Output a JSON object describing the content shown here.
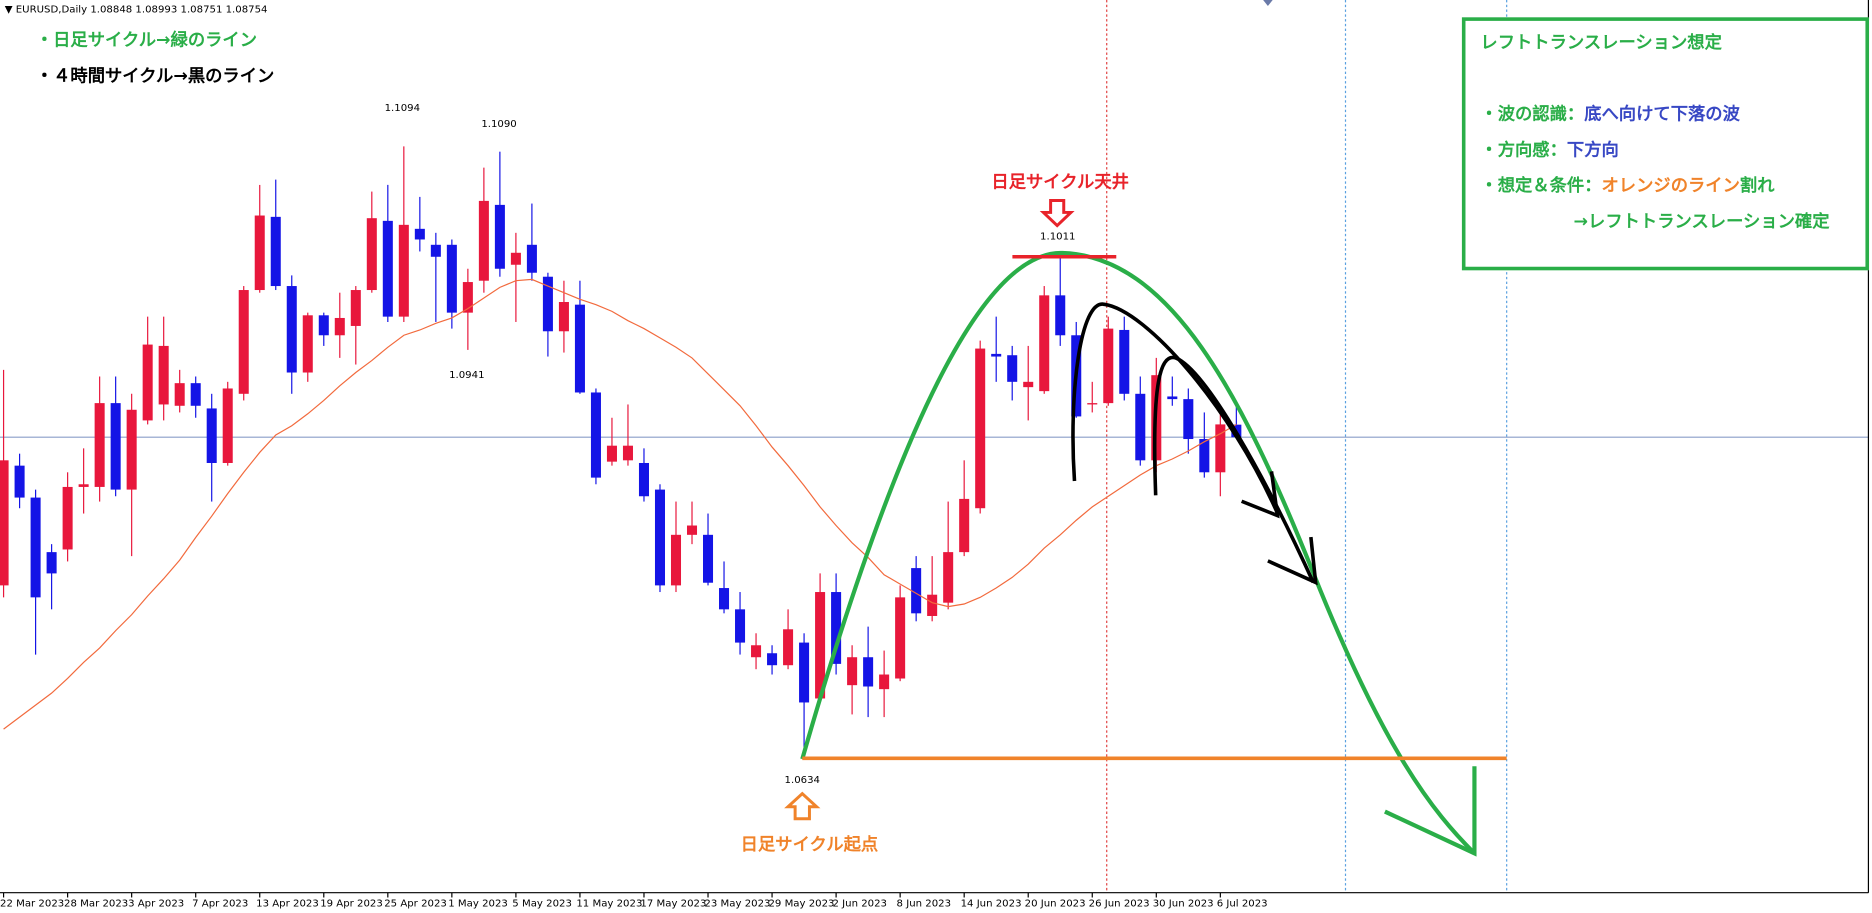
{
  "header": {
    "title": "EURUSD,Daily  1.08848 1.08993 1.08751 1.08754"
  },
  "chart_data": {
    "type": "candlestick",
    "categories": [
      "22 Mar 2023",
      null,
      null,
      null,
      "28 Mar 2023",
      null,
      null,
      null,
      "3 Apr 2023",
      null,
      null,
      null,
      "7 Apr 2023",
      null,
      null,
      null,
      "13 Apr 2023",
      null,
      null,
      null,
      "19 Apr 2023",
      null,
      null,
      null,
      "25 Apr 2023",
      null,
      null,
      null,
      "1 May 2023",
      null,
      null,
      null,
      "5 May 2023",
      null,
      null,
      null,
      "11 May 2023",
      null,
      null,
      null,
      "17 May 2023",
      null,
      null,
      null,
      "23 May 2023",
      null,
      null,
      null,
      "29 May 2023",
      null,
      null,
      null,
      "2 Jun 2023",
      null,
      null,
      null,
      "8 Jun 2023",
      null,
      null,
      null,
      "14 Jun 2023",
      null,
      null,
      null,
      "20 Jun 2023",
      null,
      null,
      null,
      "26 Jun 2023",
      null,
      null,
      null,
      "30 Jun 2023",
      null,
      null,
      null,
      "6 Jul 2023",
      null
    ],
    "open": [
      1.0764,
      1.0854,
      1.083,
      1.0789,
      1.0791,
      1.0838,
      1.0838,
      1.0901,
      1.0836,
      1.0888,
      1.09,
      1.0899,
      1.0916,
      1.0897,
      1.0856,
      1.0908,
      1.0986,
      1.1041,
      1.0989,
      1.0924,
      1.0967,
      1.0952,
      1.0959,
      1.0986,
      1.1038,
      1.0966,
      1.1032,
      1.102,
      1.102,
      1.0969,
      1.0993,
      1.105,
      1.1005,
      1.102,
      1.0996,
      1.0955,
      1.0975,
      1.0909,
      1.0857,
      1.0858,
      1.0856,
      1.0836,
      1.0764,
      1.0802,
      1.0802,
      1.0762,
      1.0746,
      1.071,
      1.0713,
      1.0704,
      1.0721,
      1.0679,
      1.0759,
      1.0689,
      1.071,
      1.0686,
      1.0694,
      1.0777,
      1.0741,
      1.0751,
      1.0789,
      1.0822,
      1.0938,
      1.0937,
      1.0913,
      1.091,
      1.0982,
      1.0952,
      1.09,
      1.0901,
      1.0956,
      1.0908,
      1.0858,
      1.0906,
      1.0904,
      1.0874,
      1.0849,
      1.08848
    ],
    "high": [
      1.0926,
      1.0863,
      1.0836,
      1.0795,
      1.0849,
      1.0867,
      1.0921,
      1.0921,
      1.0908,
      1.0966,
      1.0966,
      1.0926,
      1.0921,
      1.0908,
      1.0917,
      1.0989,
      1.1065,
      1.1069,
      1.0997,
      1.0969,
      1.0969,
      1.0984,
      1.0989,
      1.106,
      1.1065,
      1.1094,
      1.1056,
      1.1029,
      1.1024,
      1.1002,
      1.1078,
      1.109,
      1.1029,
      1.1051,
      1.0999,
      1.0993,
      1.0993,
      1.0912,
      1.089,
      1.09,
      1.0867,
      1.084,
      1.0827,
      1.0827,
      1.0818,
      1.0782,
      1.0759,
      1.0728,
      1.0719,
      1.0746,
      1.0728,
      1.0773,
      1.0773,
      1.0719,
      1.0733,
      1.0715,
      1.0764,
      1.0786,
      1.0786,
      1.0827,
      1.0858,
      1.0948,
      1.0966,
      1.0944,
      1.0944,
      1.0989,
      1.1011,
      1.0962,
      1.0917,
      1.0966,
      1.0966,
      1.0921,
      1.0935,
      1.0921,
      1.0912,
      1.0894,
      1.0899,
      1.08993
    ],
    "low": [
      1.0755,
      1.0822,
      1.0712,
      1.0746,
      1.0782,
      1.0818,
      1.0827,
      1.0831,
      1.0786,
      1.0885,
      1.0888,
      1.0894,
      1.089,
      1.0827,
      1.0854,
      1.0903,
      1.0984,
      1.0986,
      1.0908,
      1.0917,
      1.0944,
      1.0935,
      1.093,
      1.0984,
      1.0962,
      1.0962,
      1.1015,
      1.0962,
      1.0957,
      1.0941,
      1.0984,
      1.0996,
      1.0962,
      1.0993,
      1.0936,
      1.0939,
      1.0908,
      1.084,
      1.0854,
      1.0854,
      1.0827,
      1.0759,
      1.0759,
      1.0795,
      1.0764,
      1.0743,
      1.0712,
      1.0701,
      1.0697,
      1.0701,
      1.0634,
      1.0676,
      1.0697,
      1.0667,
      1.0665,
      1.0665,
      1.0692,
      1.0737,
      1.0737,
      1.0746,
      1.0786,
      1.0818,
      1.0917,
      1.0903,
      1.0888,
      1.0908,
      1.0944,
      1.089,
      1.0894,
      1.0899,
      1.0903,
      1.0854,
      1.0849,
      1.0899,
      1.0863,
      1.0845,
      1.0831,
      1.08751
    ],
    "close": [
      1.0858,
      1.083,
      1.0755,
      1.0773,
      1.0838,
      1.084,
      1.0901,
      1.0836,
      1.0896,
      1.0945,
      1.0944,
      1.0916,
      1.0899,
      1.0856,
      1.0912,
      1.0986,
      1.1042,
      1.0989,
      1.0924,
      1.0967,
      1.0952,
      1.0965,
      1.0986,
      1.104,
      1.0966,
      1.1035,
      1.1024,
      1.1011,
      1.0969,
      1.0992,
      1.1053,
      1.1002,
      1.1014,
      1.0999,
      1.0955,
      1.0977,
      1.0909,
      1.0845,
      1.0869,
      1.0869,
      1.0831,
      1.0764,
      1.0802,
      1.0809,
      1.0766,
      1.0746,
      1.0721,
      1.0719,
      1.0704,
      1.0731,
      1.0676,
      1.0759,
      1.0705,
      1.071,
      1.0688,
      1.0697,
      1.0755,
      1.0743,
      1.0757,
      1.0789,
      1.0829,
      1.0942,
      1.0936,
      1.0917,
      1.0917,
      1.0982,
      1.0952,
      1.0891,
      1.0901,
      1.0957,
      1.0908,
      1.0858,
      1.0922,
      1.0904,
      1.0874,
      1.0849,
      1.0885,
      1.08754
    ],
    "up_color": "#e8173c",
    "down_color": "#1414e6",
    "ma": {
      "color": "#f26a3d",
      "values": [
        1.0656,
        1.0665,
        1.0674,
        1.0683,
        1.0694,
        1.0706,
        1.0717,
        1.073,
        1.0742,
        1.0756,
        1.0769,
        1.0783,
        1.08,
        1.0816,
        1.0833,
        1.0849,
        1.0864,
        1.0877,
        1.0884,
        1.0893,
        1.0903,
        1.0914,
        1.0924,
        1.0933,
        1.0943,
        1.0952,
        1.0956,
        1.0961,
        1.0965,
        1.0972,
        1.098,
        1.0988,
        1.0993,
        1.0994,
        1.0989,
        1.0984,
        1.0979,
        1.0975,
        1.097,
        1.0963,
        1.0957,
        1.095,
        1.0943,
        1.0935,
        1.0923,
        1.0911,
        1.0899,
        1.0884,
        1.0868,
        1.0854,
        1.0839,
        1.0823,
        1.0809,
        1.0796,
        1.0785,
        1.0772,
        1.0765,
        1.0758,
        1.0751,
        1.0748,
        1.075,
        1.0755,
        1.0762,
        1.077,
        1.078,
        1.0792,
        1.0802,
        1.0813,
        1.0823,
        1.0831,
        1.0839,
        1.0847,
        1.0854,
        1.0859,
        1.0865,
        1.0872,
        1.0878,
        1.0885
      ]
    },
    "bid_line": 1.08754,
    "ylim": [
      1.0533,
      1.1204
    ],
    "price_labels": [
      1.1094,
      {
        "value": 1.109,
        "label": "1.1090"
      },
      1.0941,
      1.1011,
      1.0634
    ],
    "notes": [
      {
        "text": "・日足サイクル→緑のライン",
        "color": "#2aae48"
      },
      {
        "text": "・４時間サイクル→黒のライン",
        "color": "#000000"
      }
    ],
    "top_label": {
      "text": "日足サイクル天井",
      "color": "#e8232a"
    },
    "bottom_label": {
      "text": "日足サイクル起点",
      "color": "#f0832a"
    },
    "box": {
      "title": "レフトトランスレーション想定",
      "color": "#2aae48",
      "lines": [
        [
          {
            "text": "・波の認識：",
            "color": "#2aae48"
          },
          {
            "text": "底へ向けて下落の波",
            "color": "#3848c4"
          }
        ],
        [
          {
            "text": "・方向感：",
            "color": "#2aae48"
          },
          {
            "text": "下方向",
            "color": "#3848c4"
          }
        ],
        [
          {
            "text": "・想定＆条件：",
            "color": "#2aae48"
          },
          {
            "text": "オレンジのライン",
            "color": "#f0832a"
          },
          {
            "text": "割れ",
            "color": "#2aae48"
          }
        ],
        [
          {
            "text": "→レフトトランスレーション確定",
            "color": "#2aae48"
          }
        ]
      ]
    }
  }
}
